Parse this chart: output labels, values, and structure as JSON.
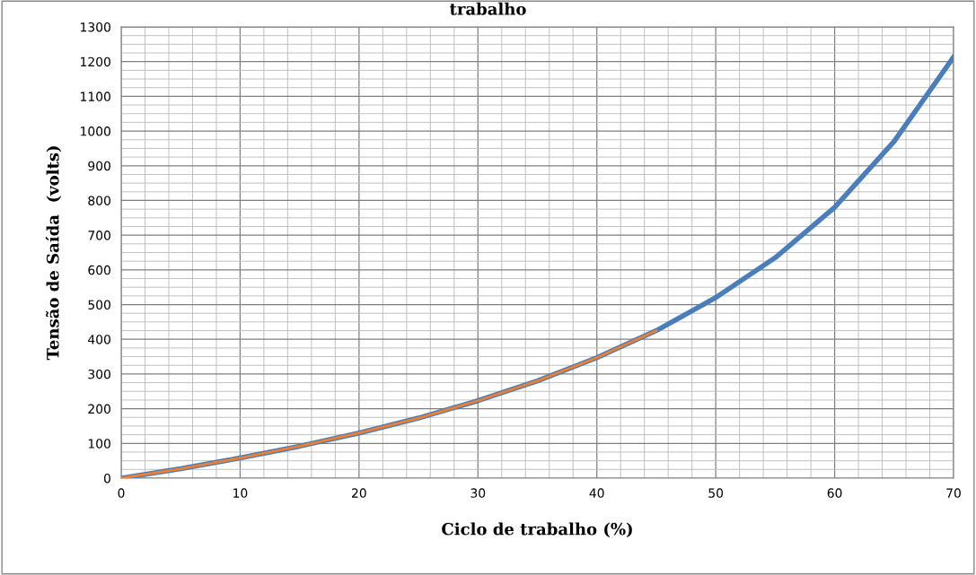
{
  "chart_data": {
    "type": "line",
    "title": "trabalho",
    "xlabel": "Ciclo de trabalho (%)",
    "ylabel": "Tensão de Saída  (volts)",
    "x": [
      0,
      5,
      10,
      15,
      20,
      25,
      30,
      35,
      40,
      45,
      50,
      55,
      60,
      65,
      70
    ],
    "series": [
      {
        "color": "#4a7ebb",
        "values": [
          0,
          27,
          58,
          92,
          130,
          173,
          223,
          280,
          347,
          425,
          520,
          635,
          780,
          970,
          1213
        ]
      },
      {
        "color": "#f07f30",
        "x": [
          0,
          5,
          10,
          15,
          20,
          25,
          30,
          35,
          40,
          45
        ],
        "values": [
          0,
          27,
          58,
          92,
          130,
          173,
          223,
          280,
          347,
          425
        ]
      }
    ],
    "xlim": [
      0,
      70
    ],
    "xticks": [
      0,
      10,
      20,
      30,
      40,
      50,
      60,
      70
    ],
    "ylim": [
      0,
      1300
    ],
    "yticks": [
      0,
      100,
      200,
      300,
      400,
      500,
      600,
      700,
      800,
      900,
      1000,
      1100,
      1200,
      1300
    ],
    "grid": true,
    "legend": false,
    "marker": "none",
    "line_style": "solid"
  }
}
